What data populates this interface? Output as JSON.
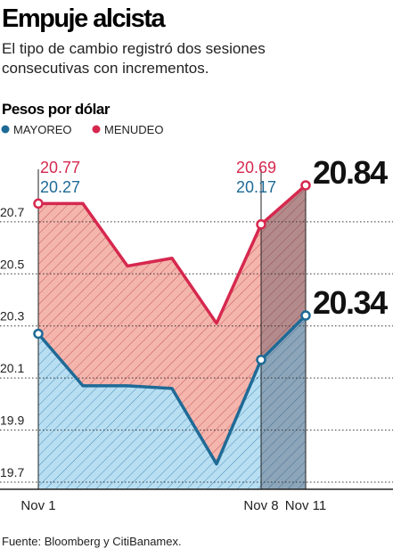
{
  "chart_data": {
    "type": "line",
    "title": "Empuje alcista",
    "subtitle": [
      "El tipo de cambio registró dos sesiones",
      "consecutivas con incrementos."
    ],
    "y_label": "Pesos por dólar",
    "source": "Fuente: Bloomberg y CitiBanamex.",
    "categories": [
      "Nov 1",
      null,
      null,
      null,
      null,
      "Nov 8",
      "Nov 11"
    ],
    "series": [
      {
        "name": "MAYOREO",
        "color": "#1f6a96",
        "values": [
          20.27,
          20.07,
          20.07,
          20.06,
          19.77,
          20.17,
          20.34
        ],
        "value_labels": [
          "20.27",
          null,
          null,
          null,
          null,
          "20.17",
          "20.34"
        ]
      },
      {
        "name": "MENUDEO",
        "color": "#d6284e",
        "values": [
          20.77,
          20.77,
          20.53,
          20.56,
          20.31,
          20.69,
          20.84
        ],
        "value_labels": [
          "20.77",
          null,
          null,
          null,
          null,
          "20.69",
          "20.84"
        ]
      }
    ],
    "ylim": [
      19.7,
      20.97
    ],
    "yticks": [
      19.7,
      19.9,
      20.1,
      20.3,
      20.5,
      20.7
    ],
    "grid": true
  }
}
